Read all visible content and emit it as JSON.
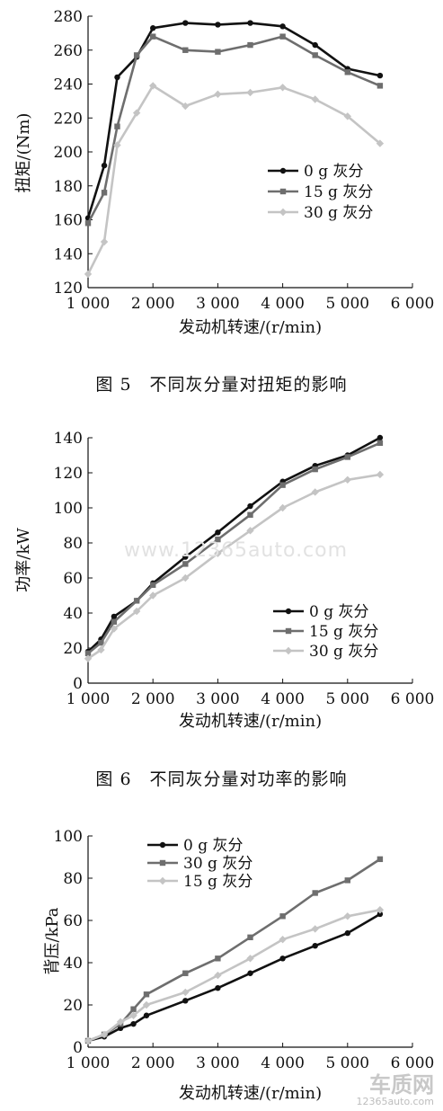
{
  "captions": [
    "图 5　不同灰分量对扭矩的影响",
    "图 6　不同灰分量对功率的影响"
  ],
  "watermarks": {
    "center": "www.12365auto.com",
    "corner_logo": "车质网",
    "corner_url": "12365auto.com"
  },
  "colors": {
    "black": "#111111",
    "dark_gray": "#6e6e6e",
    "light_gray": "#c4c4c4"
  },
  "chart_data": [
    {
      "type": "line",
      "title": "",
      "xlabel": "发动机转速/(r/min)",
      "ylabel": "扭矩/(Nm)",
      "xlim": [
        1000,
        6000
      ],
      "ylim": [
        120,
        280
      ],
      "xticks": [
        1000,
        2000,
        3000,
        4000,
        5000,
        6000
      ],
      "xtick_labels": [
        "1 000",
        "2 000",
        "3 000",
        "4 000",
        "5 000",
        "6 000"
      ],
      "yticks": [
        120,
        140,
        160,
        180,
        200,
        220,
        240,
        260,
        280
      ],
      "ytick_labels": [
        "120",
        "140",
        "160",
        "180",
        "200",
        "220",
        "240",
        "260",
        "280"
      ],
      "legend_position": "right",
      "series": [
        {
          "name": "0 g 灰分",
          "color": "#111111",
          "marker": "circle",
          "x": [
            1000,
            1250,
            1450,
            1750,
            2000,
            2500,
            3000,
            3500,
            4000,
            4500,
            5000,
            5500
          ],
          "y": [
            161,
            192,
            244,
            256,
            273,
            276,
            275,
            276,
            274,
            263,
            249,
            245
          ]
        },
        {
          "name": "15 g 灰分",
          "color": "#6e6e6e",
          "marker": "square",
          "x": [
            1000,
            1250,
            1450,
            1750,
            2000,
            2500,
            3000,
            3500,
            4000,
            4500,
            5000,
            5500
          ],
          "y": [
            158,
            176,
            215,
            257,
            268,
            260,
            259,
            263,
            268,
            257,
            247,
            239
          ]
        },
        {
          "name": "30 g 灰分",
          "color": "#c4c4c4",
          "marker": "diamond",
          "x": [
            1000,
            1250,
            1450,
            1750,
            2000,
            2500,
            3000,
            3500,
            4000,
            4500,
            5000,
            5500
          ],
          "y": [
            128,
            147,
            204,
            223,
            239,
            227,
            234,
            235,
            238,
            231,
            221,
            205
          ]
        }
      ]
    },
    {
      "type": "line",
      "title": "",
      "xlabel": "发动机转速/(r/min)",
      "ylabel": "功率/kW",
      "xlim": [
        1000,
        6000
      ],
      "ylim": [
        0,
        140
      ],
      "xticks": [
        1000,
        2000,
        3000,
        4000,
        5000,
        6000
      ],
      "xtick_labels": [
        "1 000",
        "2 000",
        "3 000",
        "4 000",
        "5 000",
        "6 000"
      ],
      "yticks": [
        0,
        20,
        40,
        60,
        80,
        100,
        120,
        140
      ],
      "ytick_labels": [
        "0",
        "20",
        "40",
        "60",
        "80",
        "100",
        "120",
        "140"
      ],
      "legend_position": "bottom-right",
      "series": [
        {
          "name": "0 g 灰分",
          "color": "#111111",
          "marker": "circle",
          "x": [
            1000,
            1200,
            1400,
            1750,
            2000,
            2500,
            3000,
            3500,
            4000,
            4500,
            5000,
            5500
          ],
          "y": [
            18,
            25,
            38,
            47,
            57,
            72,
            86,
            101,
            115,
            124,
            130,
            140
          ]
        },
        {
          "name": "15 g 灰分",
          "color": "#6e6e6e",
          "marker": "square",
          "x": [
            1000,
            1200,
            1400,
            1750,
            2000,
            2500,
            3000,
            3500,
            4000,
            4500,
            5000,
            5500
          ],
          "y": [
            17,
            23,
            35,
            47,
            56,
            68,
            82,
            96,
            113,
            122,
            129,
            137
          ]
        },
        {
          "name": "30 g 灰分",
          "color": "#c4c4c4",
          "marker": "diamond",
          "x": [
            1000,
            1200,
            1400,
            1750,
            2000,
            2500,
            3000,
            3500,
            4000,
            4500,
            5000,
            5500
          ],
          "y": [
            14,
            19,
            31,
            41,
            50,
            60,
            74,
            87,
            100,
            109,
            116,
            119
          ]
        }
      ]
    },
    {
      "type": "line",
      "title": "",
      "xlabel": "发动机转速/(r/min)",
      "ylabel": "背压/kPa",
      "xlim": [
        1000,
        6000
      ],
      "ylim": [
        0,
        100
      ],
      "xticks": [
        1000,
        2000,
        3000,
        4000,
        5000,
        6000
      ],
      "xtick_labels": [
        "1 000",
        "2 000",
        "3 000",
        "4 000",
        "5 000",
        "6 000"
      ],
      "yticks": [
        0,
        20,
        40,
        60,
        80,
        100
      ],
      "ytick_labels": [
        "0",
        "20",
        "40",
        "60",
        "80",
        "100"
      ],
      "legend_position": "top-left",
      "series": [
        {
          "name": "0 g 灰分",
          "color": "#111111",
          "marker": "circle",
          "x": [
            1000,
            1250,
            1500,
            1700,
            1900,
            2500,
            3000,
            3500,
            4000,
            4500,
            5000,
            5500
          ],
          "y": [
            3,
            5,
            9,
            11,
            15,
            22,
            28,
            35,
            42,
            48,
            54,
            63
          ]
        },
        {
          "name": "30 g 灰分",
          "color": "#6e6e6e",
          "marker": "square",
          "x": [
            1000,
            1250,
            1500,
            1700,
            1900,
            2500,
            3000,
            3500,
            4000,
            4500,
            5000,
            5500
          ],
          "y": [
            3,
            6,
            11,
            18,
            25,
            35,
            42,
            52,
            62,
            73,
            79,
            89
          ]
        },
        {
          "name": "15 g 灰分",
          "color": "#c4c4c4",
          "marker": "diamond",
          "x": [
            1000,
            1250,
            1500,
            1700,
            1900,
            2500,
            3000,
            3500,
            4000,
            4500,
            5000,
            5500
          ],
          "y": [
            3,
            6,
            12,
            15,
            20,
            26,
            34,
            42,
            51,
            56,
            62,
            65
          ]
        }
      ]
    }
  ]
}
